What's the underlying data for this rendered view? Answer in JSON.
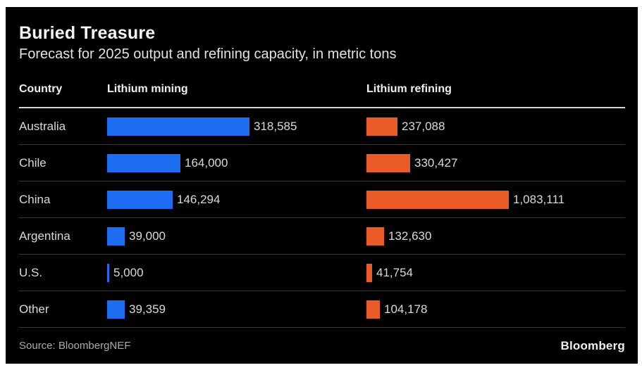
{
  "chart": {
    "title": "Buried Treasure",
    "subtitle": "Forecast for 2025 output and refining capacity, in metric tons",
    "columns": [
      "Country",
      "Lithium mining",
      "Lithium refining"
    ],
    "source": "Source: BloombergNEF",
    "brand": "Bloomberg"
  },
  "colors": {
    "card_background": "#000000",
    "mining_bar": "#1d6df2",
    "refining_bar": "#eb5b28",
    "header_rule": "#d9d9d9",
    "row_separator": "#343434"
  },
  "chart_data": {
    "type": "bar",
    "orientation": "horizontal",
    "title": "Buried Treasure",
    "subtitle": "Forecast for 2025 output and refining capacity, in metric tons",
    "unit": "metric tons",
    "categories": [
      "Australia",
      "Chile",
      "China",
      "Argentina",
      "U.S.",
      "Other"
    ],
    "series": [
      {
        "name": "Lithium mining",
        "color": "#1d6df2",
        "values": [
          318585,
          164000,
          146294,
          39000,
          5000,
          39359
        ],
        "labels": [
          "318,585",
          "164,000",
          "146,294",
          "39,000",
          "5,000",
          "39,359"
        ]
      },
      {
        "name": "Lithium refining",
        "color": "#eb5b28",
        "values": [
          237088,
          330427,
          1083111,
          132630,
          41754,
          104178
        ],
        "labels": [
          "237,088",
          "330,427",
          "1,083,111",
          "132,630",
          "41,754",
          "104,178"
        ]
      }
    ],
    "layout": "two-column table of horizontal bars; each column scaled independently to its max value; value labels at bar ends; grid off; no axes",
    "source": "BloombergNEF"
  }
}
